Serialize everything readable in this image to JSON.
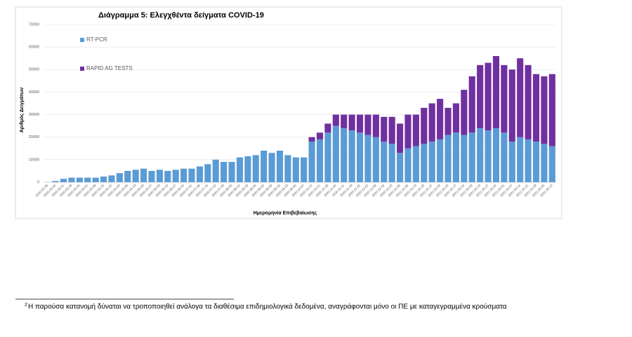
{
  "chart_data": {
    "type": "stacked-bar",
    "title": "Διάγραμμα 5: Ελεγχθέντα δείγματα COVID-19",
    "x_label": "Ημερομηνία Επιβεβαίωσης",
    "y_label": "Αριθμός Δειγμάτων",
    "categories": [
      "2020-02-26",
      "2020-03-04",
      "2020-03-11",
      "2020-03-18",
      "2020-03-25",
      "2020-04-01",
      "2020-04-08",
      "2020-04-15",
      "2020-04-22",
      "2020-04-29",
      "2020-05-06",
      "2020-05-13",
      "2020-05-20",
      "2020-05-27",
      "2020-06-03",
      "2020-06-10",
      "2020-06-17",
      "2020-06-24",
      "2020-07-01",
      "2020-07-08",
      "2020-07-15",
      "2020-07-22",
      "2020-07-29",
      "2020-08-05",
      "2020-08-12",
      "2020-08-19",
      "2020-08-26",
      "2020-09-02",
      "2020-09-09",
      "2020-09-16",
      "2020-09-23",
      "2020-09-30",
      "2020-10-07",
      "2020-10-14",
      "2020-10-21",
      "2020-10-28",
      "2020-11-04",
      "2020-11-11",
      "2020-11-18",
      "2020-11-25",
      "2020-12-02",
      "2020-12-09",
      "2020-12-16",
      "2020-12-23",
      "2020-12-30",
      "2021-01-06",
      "2021-01-13",
      "2021-01-20",
      "2021-01-27",
      "2021-02-03",
      "2021-02-10",
      "2021-02-17",
      "2021-02-24",
      "2021-03-03",
      "2021-03-10",
      "2021-03-17",
      "2021-03-24",
      "2021-03-31",
      "2021-04-07",
      "2021-04-14",
      "2021-04-21",
      "2021-04-28",
      "2021-05-05",
      "2021-05-12"
    ],
    "series": [
      {
        "name": "RT-PCR",
        "color": "#5b9bd5",
        "values": [
          0,
          500,
          1500,
          2000,
          2000,
          2000,
          2000,
          2500,
          3000,
          4000,
          5000,
          5500,
          6000,
          5000,
          5500,
          5000,
          5500,
          6000,
          6000,
          7000,
          8000,
          10000,
          9000,
          9000,
          11000,
          11500,
          12000,
          14000,
          13000,
          14000,
          12000,
          11000,
          11000,
          18000,
          19000,
          22000,
          25000,
          24000,
          23000,
          22000,
          21000,
          20000,
          18000,
          17000,
          13000,
          15000,
          16000,
          17000,
          18000,
          19000,
          21000,
          22000,
          21000,
          22000,
          24000,
          23000,
          24000,
          22000,
          18000,
          20000,
          19000,
          18000,
          17000,
          16000
        ]
      },
      {
        "name": "RAPID AG TESTS",
        "color": "#7030a0",
        "values": [
          0,
          0,
          0,
          0,
          0,
          0,
          0,
          0,
          0,
          0,
          0,
          0,
          0,
          0,
          0,
          0,
          0,
          0,
          0,
          0,
          0,
          0,
          0,
          0,
          0,
          0,
          0,
          0,
          0,
          0,
          0,
          0,
          0,
          2000,
          3000,
          4000,
          5000,
          6000,
          7000,
          8000,
          9000,
          10000,
          11000,
          12000,
          13000,
          15000,
          14000,
          16000,
          17000,
          18000,
          12000,
          13000,
          20000,
          25000,
          28000,
          30000,
          32000,
          30000,
          32000,
          35000,
          33000,
          30000,
          30000,
          32000
        ]
      }
    ],
    "ylim": [
      0,
      70000
    ],
    "yticks": [
      0,
      10000,
      20000,
      30000,
      40000,
      50000,
      60000,
      70000
    ],
    "grid": true
  },
  "footnote": {
    "marker": "2",
    "text": "Η παρούσα κατανομή δύναται να τροποποιηθεί ανάλογα τα διαθέσιμα επιδημιολογικά δεδομένα, αναγράφονται μόνο οι ΠΕ με καταγεγραμμένα κρούσματα"
  }
}
